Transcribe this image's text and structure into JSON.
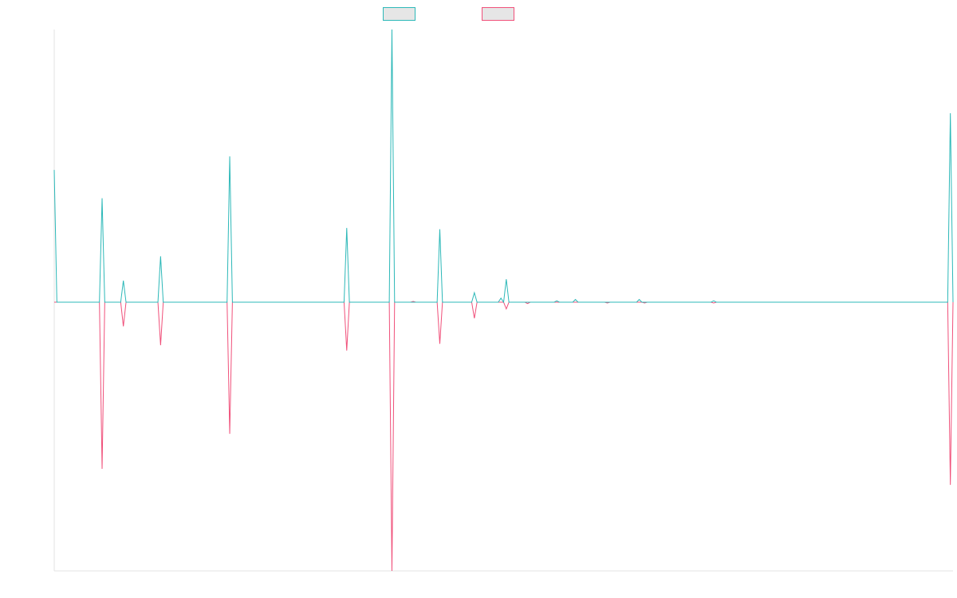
{
  "chart_data": {
    "type": "line",
    "title": "",
    "xlabel": "",
    "ylabel": "",
    "x": [
      0,
      1,
      2,
      3,
      4,
      5,
      6,
      7,
      8,
      9,
      10,
      11,
      12,
      13,
      14,
      15,
      16,
      17,
      18,
      19,
      20,
      21,
      22,
      23,
      24,
      25,
      26,
      27,
      28,
      29,
      30,
      31,
      32,
      33,
      34,
      35,
      36,
      37,
      38,
      39,
      40,
      41,
      42,
      43,
      44,
      45,
      46,
      47,
      48,
      49,
      50,
      51,
      52,
      53,
      54,
      55,
      56,
      57,
      58,
      59,
      60,
      61,
      62,
      63,
      64,
      65,
      66,
      67,
      68,
      69,
      70,
      71,
      72,
      73,
      74,
      75,
      76,
      77,
      78,
      79,
      80,
      81,
      82,
      83,
      84,
      85,
      86,
      87,
      88,
      89,
      90,
      91,
      92,
      93,
      94,
      95,
      96,
      97,
      98,
      99,
      100,
      101,
      102,
      103,
      104,
      105,
      106,
      107,
      108,
      109,
      110,
      111,
      112,
      113,
      114,
      115,
      116,
      117,
      118,
      119,
      120,
      121,
      122,
      123,
      124,
      125,
      126,
      127,
      128,
      129,
      130,
      131,
      132,
      133,
      134,
      135,
      136,
      137,
      138,
      139,
      140,
      141,
      142,
      143,
      144,
      145,
      146,
      147,
      148,
      149,
      150,
      151,
      152,
      153,
      154,
      155,
      156,
      157,
      158,
      159,
      160,
      161,
      162,
      163,
      164,
      165,
      166,
      167,
      168,
      169,
      170,
      171,
      172,
      173,
      174,
      175,
      176,
      177,
      178,
      179,
      180,
      181,
      182,
      183,
      184,
      185,
      186,
      187,
      188,
      189,
      190,
      191,
      192,
      193,
      194,
      195,
      196,
      197,
      198,
      199,
      200,
      201,
      202,
      203,
      204,
      205,
      206,
      207,
      208,
      209,
      210,
      211,
      212,
      213,
      214,
      215,
      216,
      217,
      218,
      219,
      220,
      221,
      222,
      223,
      224,
      225,
      226,
      227,
      228,
      229,
      230,
      231,
      232,
      233,
      234,
      235,
      236,
      237,
      238,
      239,
      240,
      241,
      242,
      243,
      244,
      245,
      246,
      247,
      248,
      249,
      250,
      251,
      252,
      253,
      254,
      255,
      256,
      257,
      258,
      259,
      260,
      261,
      262,
      263,
      264,
      265,
      266,
      267,
      268,
      269,
      270,
      271,
      272,
      273,
      274,
      275,
      276,
      277,
      278,
      279,
      280,
      281,
      282,
      283,
      284,
      285,
      286,
      287,
      288,
      289,
      290,
      291,
      292,
      293,
      294,
      295,
      296,
      297,
      298,
      299,
      300,
      301,
      302,
      303,
      304,
      305,
      306,
      307,
      308,
      309,
      310,
      311,
      312,
      313,
      314,
      315,
      316,
      317,
      318,
      319,
      320,
      321,
      322,
      323,
      324,
      325,
      326,
      327,
      328,
      329,
      330,
      331,
      332,
      333,
      334,
      335,
      336,
      337,
      338
    ],
    "ylim": [
      -100,
      100
    ],
    "grid": false,
    "legend_position": "top-center",
    "spikes": [
      {
        "x": 0,
        "s1": 49,
        "s2": 0
      },
      {
        "x": 18,
        "s1": 38.5,
        "s2": -62
      },
      {
        "x": 26,
        "s1": 8,
        "s2": -9
      },
      {
        "x": 40,
        "s1": 17,
        "s2": -16
      },
      {
        "x": 66,
        "s1": 54,
        "s2": -49
      },
      {
        "x": 110,
        "s1": 27.5,
        "s2": -18
      },
      {
        "x": 127,
        "s1": 101,
        "s2": -100
      },
      {
        "x": 135,
        "s1": 0,
        "s2": 0.3
      },
      {
        "x": 145,
        "s1": 27,
        "s2": -15.5
      },
      {
        "x": 158,
        "s1": 3.5,
        "s2": -6
      },
      {
        "x": 168,
        "s1": 1.5,
        "s2": 0
      },
      {
        "x": 170,
        "s1": 8.5,
        "s2": -2.5
      },
      {
        "x": 178,
        "s1": 0,
        "s2": -0.5
      },
      {
        "x": 189,
        "s1": 0.5,
        "s2": 0
      },
      {
        "x": 196,
        "s1": 1,
        "s2": 0
      },
      {
        "x": 208,
        "s1": 0,
        "s2": -0.3
      },
      {
        "x": 220,
        "s1": 1,
        "s2": 0
      },
      {
        "x": 222,
        "s1": 0,
        "s2": -0.3
      },
      {
        "x": 248,
        "s1": 0.5,
        "s2": -0.3
      },
      {
        "x": 337,
        "s1": 70,
        "s2": -68
      }
    ],
    "series": [
      {
        "color": "#2cb8b8"
      },
      {
        "color": "#f0507a"
      }
    ]
  }
}
